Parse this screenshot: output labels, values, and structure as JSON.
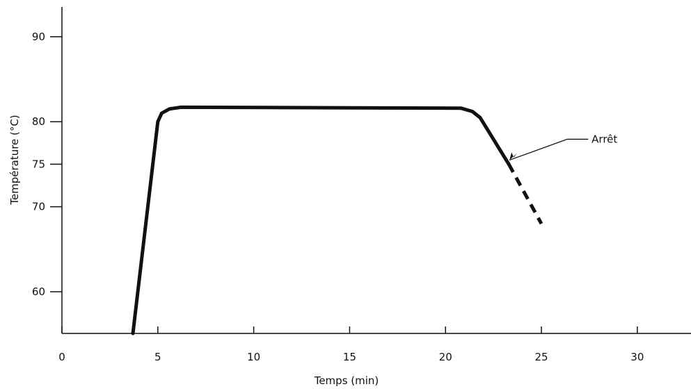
{
  "chart_data": {
    "type": "line",
    "title": "",
    "xlabel": "Temps (min)",
    "ylabel": "Température (°C)",
    "xlim": [
      0,
      32.8
    ],
    "ylim": [
      55.1,
      93.5
    ],
    "x_ticks": [
      0,
      5,
      10,
      15,
      20,
      25,
      30
    ],
    "y_ticks": [
      60,
      70,
      75,
      80,
      90
    ],
    "grid": false,
    "series": [
      {
        "style": "solid",
        "color": "#111111",
        "points": [
          {
            "x": 3.7,
            "y": 55.1
          },
          {
            "x": 5.0,
            "y": 80.0
          },
          {
            "x": 5.2,
            "y": 81.0
          },
          {
            "x": 5.6,
            "y": 81.5
          },
          {
            "x": 6.2,
            "y": 81.7
          },
          {
            "x": 20.8,
            "y": 81.6
          },
          {
            "x": 21.4,
            "y": 81.2
          },
          {
            "x": 21.8,
            "y": 80.5
          },
          {
            "x": 23.3,
            "y": 75.0
          }
        ]
      },
      {
        "style": "dashed",
        "color": "#111111",
        "points": [
          {
            "x": 23.3,
            "y": 75.0
          },
          {
            "x": 25.0,
            "y": 68.0
          }
        ]
      }
    ],
    "annotations": [
      {
        "text": "Arrêt",
        "x": 23.3,
        "y": 75.0
      }
    ]
  }
}
